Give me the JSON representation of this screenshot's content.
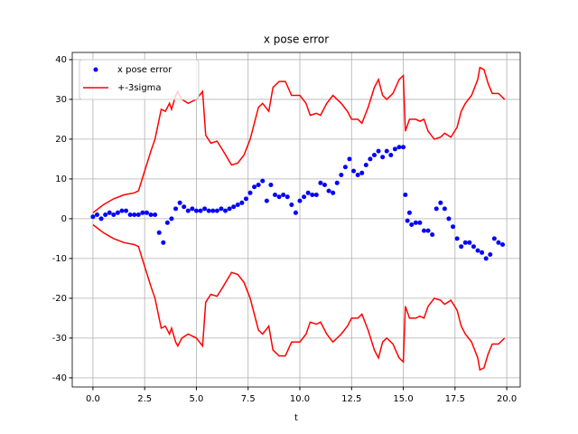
{
  "chart_data": {
    "type": "line",
    "title": "x pose error",
    "x_label": "t",
    "grid": true,
    "legend": "upper left",
    "xlim": [
      -1,
      20.65
    ],
    "ylim": [
      -42.3,
      41.8
    ],
    "xticks": [
      {
        "value": 0,
        "label": "0.0"
      },
      {
        "value": 2.5,
        "label": "2.5"
      },
      {
        "value": 5,
        "label": "5.0"
      },
      {
        "value": 7.5,
        "label": "7.5"
      },
      {
        "value": 10,
        "label": "10.0"
      },
      {
        "value": 12.5,
        "label": "12.5"
      },
      {
        "value": 15,
        "label": "15.0"
      },
      {
        "value": 17.5,
        "label": "17.5"
      },
      {
        "value": 20,
        "label": "20.0"
      }
    ],
    "yticks": [
      -40,
      -30,
      -20,
      -10,
      0,
      10,
      20,
      30,
      40
    ],
    "series": [
      {
        "name": "x pose error",
        "color": "#0000ff",
        "style": "points",
        "x": [
          0,
          0.2,
          0.4,
          0.6,
          0.8,
          1,
          1.2,
          1.4,
          1.6,
          1.8,
          2,
          2.2,
          2.4,
          2.6,
          2.8,
          3,
          3.2,
          3.4,
          3.6,
          3.8,
          4,
          4.2,
          4.4,
          4.6,
          4.8,
          5,
          5.2,
          5.4,
          5.6,
          5.8,
          6,
          6.2,
          6.4,
          6.6,
          6.8,
          7,
          7.2,
          7.4,
          7.6,
          7.8,
          8,
          8.2,
          8.4,
          8.6,
          8.8,
          9,
          9.2,
          9.4,
          9.6,
          9.8,
          10,
          10.2,
          10.4,
          10.6,
          10.8,
          11,
          11.2,
          11.4,
          11.6,
          11.8,
          12,
          12.2,
          12.4,
          12.6,
          12.8,
          13,
          13.2,
          13.4,
          13.6,
          13.8,
          14,
          14.2,
          14.4,
          14.6,
          14.8,
          15,
          15.1,
          15.2,
          15.3,
          15.4,
          15.6,
          15.8,
          16,
          16.2,
          16.4,
          16.6,
          16.8,
          17,
          17.2,
          17.4,
          17.6,
          17.8,
          18,
          18.2,
          18.4,
          18.6,
          18.8,
          19,
          19.2,
          19.4,
          19.6,
          19.8
        ],
        "values": [
          0.5,
          1,
          0,
          1,
          1.5,
          1,
          1.5,
          2,
          2,
          1,
          1,
          1,
          1.5,
          1.5,
          1,
          1,
          -3.5,
          -6,
          -1,
          0,
          2.5,
          4,
          3,
          2,
          2.5,
          2,
          2,
          2.5,
          2,
          2,
          2,
          2.5,
          2,
          2.5,
          3,
          3.5,
          4,
          5,
          6.5,
          8,
          8.5,
          9.5,
          4.5,
          8.5,
          6,
          5.5,
          6,
          5.5,
          3.5,
          1.5,
          4.5,
          5.5,
          6.5,
          6,
          6,
          9,
          8.5,
          7,
          6.5,
          9,
          11,
          13,
          15,
          12,
          11,
          11.5,
          13.5,
          15,
          16,
          17,
          15.5,
          17,
          16,
          17.5,
          18,
          18,
          6,
          -0.5,
          1.5,
          -1.5,
          -1,
          -1,
          -3,
          -3,
          -4,
          2.5,
          4,
          2.5,
          0,
          -2,
          -5,
          -7,
          -6,
          -6,
          -7,
          -8,
          -8.5,
          -10,
          -9,
          -5,
          -6,
          -6.5
        ]
      },
      {
        "name": "+-3sigma",
        "color": "#ff0000",
        "style": "line",
        "x": [
          0,
          0.5,
          1,
          1.5,
          2,
          2.2,
          2.5,
          2.8,
          3,
          3.2,
          3.3,
          3.5,
          3.7,
          3.8,
          4,
          4.1,
          4.3,
          4.6,
          5,
          5.3,
          5.45,
          5.7,
          6,
          6.3,
          6.7,
          7,
          7.3,
          7.6,
          8,
          8.2,
          8.5,
          8.7,
          9,
          9.3,
          9.6,
          10,
          10.3,
          10.5,
          10.8,
          11,
          11.3,
          11.6,
          12,
          12.3,
          12.5,
          12.8,
          13,
          13.3,
          13.6,
          13.8,
          14,
          14.2,
          14.5,
          14.8,
          15,
          15.1,
          15.3,
          15.6,
          15.8,
          16,
          16.2,
          16.5,
          16.8,
          17,
          17.3,
          17.6,
          17.8,
          18,
          18.3,
          18.6,
          18.7,
          18.9,
          19.1,
          19.3,
          19.6,
          19.9
        ],
        "values": [
          1.5,
          3.5,
          5,
          6,
          6.5,
          7,
          12,
          17,
          20,
          25,
          27.5,
          27,
          29,
          27.5,
          31,
          32,
          30,
          29,
          30,
          32,
          21,
          19,
          19.5,
          17,
          13.5,
          14,
          16,
          20,
          28,
          29,
          27,
          33,
          34.5,
          34.5,
          31,
          31,
          29,
          26,
          26.5,
          26,
          29,
          31,
          29,
          27,
          25,
          25,
          24,
          28,
          33,
          35,
          31,
          30,
          31.5,
          35,
          36,
          22,
          25,
          25,
          24.5,
          25,
          22,
          20,
          20.5,
          21.5,
          20.5,
          23,
          27,
          29,
          31,
          35,
          38,
          37.5,
          34,
          31.5,
          31.5,
          30
        ],
        "lower": [
          -1.5,
          -3.5,
          -5,
          -6,
          -6.5,
          -7,
          -12,
          -17,
          -20,
          -25,
          -27.5,
          -27,
          -29,
          -27.5,
          -31,
          -32,
          -30,
          -29,
          -30,
          -32,
          -21,
          -19,
          -19.5,
          -17,
          -13.5,
          -14,
          -16,
          -20,
          -28,
          -29,
          -27,
          -33,
          -34.5,
          -34.5,
          -31,
          -31,
          -29,
          -26,
          -26.5,
          -26,
          -29,
          -31,
          -29,
          -27,
          -25,
          -25,
          -24,
          -28,
          -33,
          -35,
          -31,
          -30,
          -31.5,
          -35,
          -36,
          -22,
          -25,
          -25,
          -24.5,
          -25,
          -22,
          -20,
          -20.5,
          -21.5,
          -20.5,
          -23,
          -27,
          -29,
          -31,
          -35,
          -38,
          -37.5,
          -34,
          -31.5,
          -31.5,
          -30
        ]
      }
    ]
  }
}
